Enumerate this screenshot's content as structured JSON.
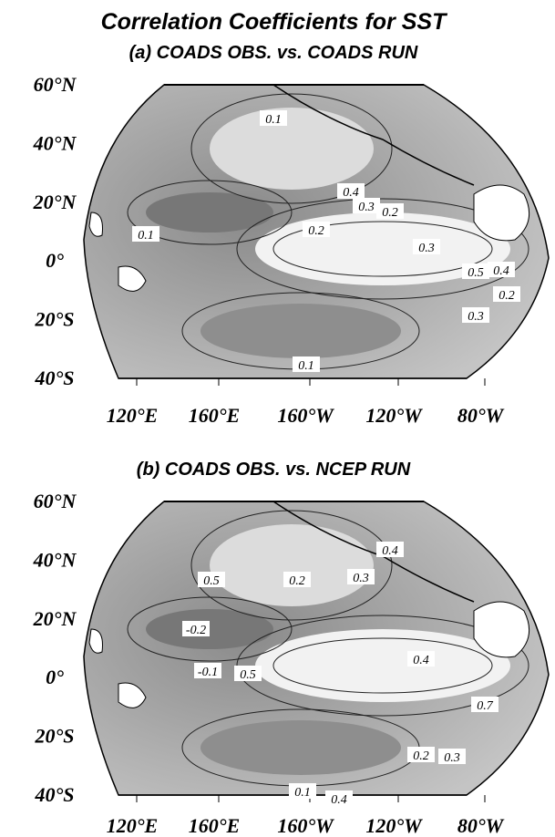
{
  "title": "Correlation Coefficients for SST",
  "panels": [
    {
      "subtitle": "(a) COADS OBS. vs. COADS RUN",
      "lat_labels": [
        "60°N",
        "40°N",
        "20°N",
        "0°",
        "20°S",
        "40°S"
      ],
      "lon_labels": [
        "120°E",
        "160°E",
        "160°W",
        "120°W",
        "80°W"
      ],
      "contour_labels": [
        "0.1",
        "0.4",
        "0.3",
        "0.2",
        "0.2",
        "0.1",
        "0.3",
        "0.5",
        "0.4",
        "0.2",
        "0.3",
        "0.1"
      ]
    },
    {
      "subtitle": "(b) COADS OBS. vs. NCEP RUN",
      "lat_labels": [
        "60°N",
        "40°N",
        "20°N",
        "0°",
        "20°S",
        "40°S"
      ],
      "lon_labels": [
        "120°E",
        "160°E",
        "160°W",
        "120°W",
        "80°W"
      ],
      "contour_labels": [
        "0.4",
        "0.5",
        "0.2",
        "0.3",
        "-0.2",
        "-0.1",
        "0.5",
        "0.4",
        "0.7",
        "0.2",
        "0.3",
        "0.1",
        "0.4"
      ]
    }
  ]
}
